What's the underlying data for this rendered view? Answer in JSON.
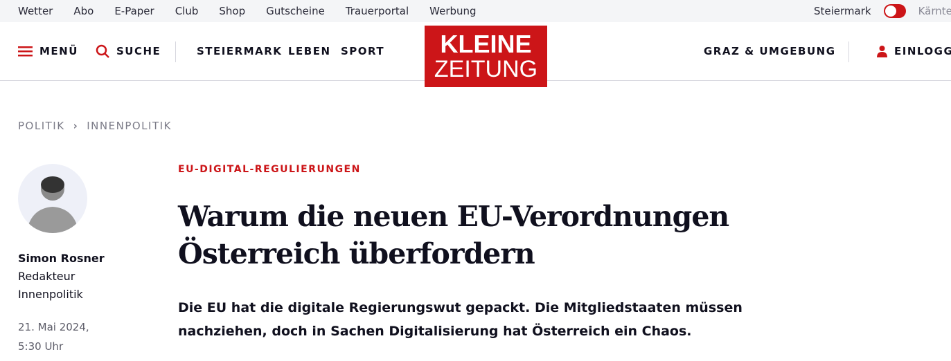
{
  "topbar": {
    "links": [
      "Wetter",
      "Abo",
      "E-Paper",
      "Club",
      "Shop",
      "Gutscheine",
      "Trauerportal",
      "Werbung"
    ],
    "region_left": "Steiermark",
    "region_right": "Kärnten",
    "toggle_on": true
  },
  "nav": {
    "menu": "MENÜ",
    "search": "SUCHE",
    "sections": [
      "STEIERMARK",
      "LEBEN",
      "SPORT"
    ],
    "region": "GRAZ & UMGEBUNG",
    "login": "EINLOGGEN"
  },
  "logo": {
    "line1": "KLEINE",
    "line2": "ZEITUNG"
  },
  "breadcrumb": [
    "POLITIK",
    "INNENPOLITIK"
  ],
  "author": {
    "name": "Simon Rosner",
    "role1": "Redakteur",
    "role2": "Innenpolitik",
    "date": "21. Mai 2024,",
    "time": "5:30 Uhr"
  },
  "article": {
    "kicker": "EU-DIGITAL-REGULIERUNGEN",
    "title_line1": "Warum die neuen EU-Verordnungen",
    "title_line2": "Österreich überfordern",
    "lead": "Die EU hat die digitale Regierungswut gepackt. Die Mitgliedstaaten müssen nachziehen, doch in Sachen Digitalisierung hat Österreich ein Chaos."
  },
  "colors": {
    "accent": "#cc1518",
    "text": "#10101e"
  }
}
